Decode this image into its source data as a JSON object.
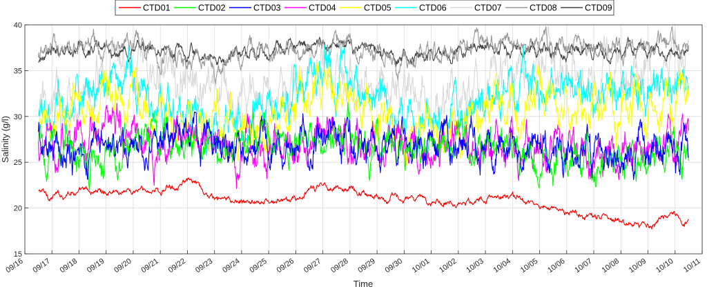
{
  "chart_data": {
    "type": "line",
    "xlabel": "Time",
    "ylabel": "Salinity (g/l)",
    "ylim": [
      15,
      40
    ],
    "yticks": [
      15,
      20,
      25,
      30,
      35,
      40
    ],
    "xlim": [
      "2023-09-16",
      "2023-10-11"
    ],
    "xticks": [
      "09/16",
      "09/17",
      "09/18",
      "09/19",
      "09/20",
      "09/21",
      "09/22",
      "09/23",
      "09/24",
      "09/25",
      "09/26",
      "09/27",
      "09/28",
      "09/29",
      "09/30",
      "10/01",
      "10/02",
      "10/03",
      "10/04",
      "10/05",
      "10/06",
      "10/07",
      "10/08",
      "10/09",
      "10/10",
      "10/11"
    ],
    "grid": true,
    "legend": "top, horizontal",
    "x": [
      "09/16 12:00",
      "09/17",
      "09/18",
      "09/19",
      "09/20",
      "09/21",
      "09/22",
      "09/23",
      "09/24",
      "09/25",
      "09/26",
      "09/27",
      "09/28",
      "09/29",
      "09/30",
      "10/01",
      "10/02",
      "10/03",
      "10/04",
      "10/05",
      "10/06",
      "10/07",
      "10/08",
      "10/09",
      "10/10",
      "10/10 12:00"
    ],
    "series": [
      {
        "name": "CTD01",
        "color": "#ff0000",
        "noise": 0.4,
        "values": [
          21.8,
          21.3,
          21.8,
          21.8,
          21.9,
          21.9,
          23.0,
          21.0,
          20.6,
          20.6,
          21.0,
          22.5,
          22.0,
          21.3,
          21.0,
          20.8,
          20.6,
          21.0,
          21.3,
          20.2,
          19.6,
          19.0,
          18.6,
          18.3,
          19.2,
          18.2
        ]
      },
      {
        "name": "CTD02",
        "color": "#00ff00",
        "noise": 2.2,
        "values": [
          26.5,
          26.0,
          26.2,
          26.5,
          27.0,
          26.8,
          27.5,
          27.0,
          26.8,
          27.5,
          27.5,
          27.0,
          27.5,
          26.5,
          27.0,
          27.0,
          27.5,
          26.5,
          26.5,
          25.5,
          26.0,
          25.5,
          26.0,
          25.5,
          25.5,
          25.0
        ]
      },
      {
        "name": "CTD03",
        "color": "#0000ff",
        "noise": 2.2,
        "values": [
          27.0,
          26.5,
          26.5,
          27.0,
          27.5,
          27.0,
          28.0,
          27.0,
          26.5,
          27.0,
          27.5,
          27.5,
          27.0,
          26.5,
          27.5,
          27.0,
          27.0,
          27.0,
          26.5,
          26.0,
          25.5,
          26.0,
          26.0,
          26.5,
          26.0,
          25.0
        ]
      },
      {
        "name": "CTD04",
        "color": "#ff00ff",
        "noise": 2.4,
        "values": [
          26.0,
          27.0,
          27.5,
          28.5,
          29.0,
          27.0,
          27.5,
          27.0,
          26.5,
          26.5,
          27.5,
          28.5,
          27.0,
          26.0,
          26.5,
          26.5,
          26.5,
          27.0,
          26.5,
          26.5,
          26.5,
          26.0,
          26.0,
          26.5,
          26.5,
          27.0
        ]
      },
      {
        "name": "CTD05",
        "color": "#ffff00",
        "noise": 2.6,
        "values": [
          28.5,
          29.5,
          31.0,
          32.5,
          33.0,
          29.5,
          29.0,
          28.5,
          28.5,
          29.5,
          31.0,
          33.5,
          32.0,
          29.5,
          28.5,
          28.5,
          29.0,
          30.5,
          32.0,
          33.0,
          31.5,
          31.0,
          31.5,
          31.0,
          32.0,
          32.0
        ]
      },
      {
        "name": "CTD06",
        "color": "#00ffff",
        "noise": 2.6,
        "values": [
          30.0,
          30.5,
          32.0,
          34.0,
          35.0,
          30.5,
          30.0,
          29.5,
          29.5,
          30.5,
          32.0,
          34.5,
          33.5,
          31.0,
          29.5,
          29.5,
          30.0,
          31.5,
          33.5,
          34.5,
          33.0,
          32.5,
          33.0,
          32.5,
          33.5,
          33.5
        ]
      },
      {
        "name": "CTD07",
        "color": "#d9d9d9",
        "noise": 2.8,
        "values": [
          31.5,
          31.0,
          33.0,
          35.0,
          35.5,
          34.0,
          33.0,
          33.5,
          32.0,
          32.5,
          33.0,
          35.0,
          34.5,
          33.0,
          32.5,
          31.0,
          32.0,
          33.5,
          35.0,
          35.5,
          34.5,
          34.5,
          35.5,
          35.0,
          35.5,
          35.5
        ]
      },
      {
        "name": "CTD08",
        "color": "#999999",
        "noise": 1.2,
        "values": [
          36.5,
          37.0,
          37.5,
          38.0,
          38.0,
          37.0,
          36.0,
          35.5,
          36.5,
          37.5,
          37.5,
          37.5,
          37.5,
          37.0,
          35.5,
          37.0,
          37.5,
          38.0,
          38.0,
          37.8,
          37.5,
          37.5,
          37.8,
          37.5,
          37.8,
          37.8
        ]
      },
      {
        "name": "CTD09",
        "color": "#444444",
        "noise": 0.8,
        "values": [
          36.0,
          37.0,
          37.5,
          37.3,
          37.5,
          37.2,
          36.8,
          36.3,
          36.8,
          37.2,
          37.5,
          37.5,
          37.5,
          37.3,
          36.5,
          36.5,
          37.2,
          37.5,
          37.3,
          37.3,
          37.3,
          37.3,
          37.3,
          37.3,
          37.3,
          37.3
        ]
      }
    ]
  }
}
